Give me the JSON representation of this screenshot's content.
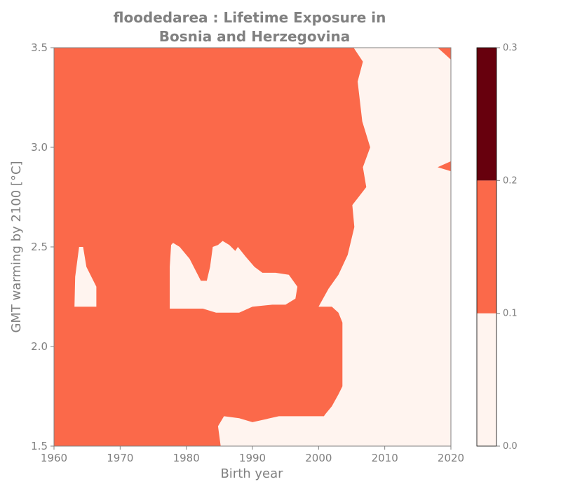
{
  "chart_data": {
    "type": "heatmap",
    "title_line1": "floodedarea : Lifetime Exposure in",
    "title_line2": "Bosnia and Herzegovina",
    "xlabel": "Birth year",
    "ylabel": "GMT warming by 2100 [°C]",
    "xlim": [
      1960,
      2020
    ],
    "ylim": [
      1.5,
      3.5
    ],
    "x_ticks": [
      1960,
      1970,
      1980,
      1990,
      2000,
      2010,
      2020
    ],
    "y_ticks": [
      "1.5",
      "2.0",
      "2.5",
      "3.0",
      "3.5"
    ],
    "levels": [
      0.0,
      0.1,
      0.2,
      0.3
    ],
    "level_colors": [
      "#fff4ef",
      "#fb694a",
      "#67000d"
    ],
    "colorbar_ticks": [
      "0.0",
      "0.1",
      "0.2",
      "0.3"
    ],
    "regions": [
      {
        "name": "main",
        "level_range": [
          0.1,
          0.2
        ],
        "polygon": [
          [
            1960,
            1.5
          ],
          [
            1960,
            3.5
          ],
          [
            2005.3,
            3.5
          ],
          [
            2006.7,
            3.43
          ],
          [
            2005.9,
            3.33
          ],
          [
            2006.6,
            3.13
          ],
          [
            2007.8,
            3.0
          ],
          [
            2006.7,
            2.9
          ],
          [
            2007.2,
            2.8
          ],
          [
            2005.1,
            2.71
          ],
          [
            2005.4,
            2.6
          ],
          [
            2004.4,
            2.46
          ],
          [
            2003.0,
            2.36
          ],
          [
            2001.5,
            2.29
          ],
          [
            2000.0,
            2.2
          ],
          [
            2002.0,
            2.2
          ],
          [
            2003.0,
            2.17
          ],
          [
            2003.6,
            2.12
          ],
          [
            2003.6,
            1.8
          ],
          [
            2003.0,
            1.76
          ],
          [
            2002.0,
            1.7
          ],
          [
            2001.0,
            1.66
          ],
          [
            2000.8,
            1.65
          ],
          [
            1994.0,
            1.65
          ],
          [
            1990.0,
            1.62
          ],
          [
            1988.0,
            1.64
          ],
          [
            1985.7,
            1.65
          ],
          [
            1984.8,
            1.6
          ],
          [
            1985.2,
            1.5
          ]
        ]
      }
    ],
    "holes": [
      {
        "name": "left",
        "level_range": [
          0.0,
          0.1
        ],
        "polygon": [
          [
            1963.1,
            2.2
          ],
          [
            1966.4,
            2.2
          ],
          [
            1966.4,
            2.3
          ],
          [
            1964.9,
            2.4
          ],
          [
            1964.4,
            2.5
          ],
          [
            1963.8,
            2.5
          ],
          [
            1963.2,
            2.35
          ]
        ]
      },
      {
        "name": "middle",
        "level_range": [
          0.0,
          0.1
        ],
        "polygon": [
          [
            1977.5,
            2.19
          ],
          [
            1982.5,
            2.19
          ],
          [
            1984.5,
            2.17
          ],
          [
            1988.0,
            2.17
          ],
          [
            1990.0,
            2.2
          ],
          [
            1993.0,
            2.21
          ],
          [
            1995.0,
            2.21
          ],
          [
            1996.5,
            2.24
          ],
          [
            1996.8,
            2.3
          ],
          [
            1995.5,
            2.36
          ],
          [
            1993.5,
            2.37
          ],
          [
            1991.5,
            2.37
          ],
          [
            1990.3,
            2.4
          ],
          [
            1989.0,
            2.45
          ],
          [
            1987.8,
            2.5
          ],
          [
            1987.4,
            2.48
          ],
          [
            1986.5,
            2.51
          ],
          [
            1985.5,
            2.53
          ],
          [
            1984.8,
            2.51
          ],
          [
            1984.0,
            2.5
          ],
          [
            1983.6,
            2.4
          ],
          [
            1983.1,
            2.33
          ],
          [
            1982.2,
            2.33
          ],
          [
            1980.5,
            2.44
          ],
          [
            1979.0,
            2.5
          ],
          [
            1978.0,
            2.52
          ],
          [
            1977.7,
            2.51
          ],
          [
            1977.5,
            2.4
          ]
        ]
      }
    ],
    "right_patches": [
      {
        "name": "top-right",
        "level_range": [
          0.1,
          0.2
        ],
        "polygon": [
          [
            2018.0,
            3.5
          ],
          [
            2020.0,
            3.5
          ],
          [
            2020.0,
            3.44
          ],
          [
            2019.0,
            3.47
          ]
        ]
      },
      {
        "name": "mid-right",
        "level_range": [
          0.1,
          0.2
        ],
        "polygon": [
          [
            2018.0,
            2.9
          ],
          [
            2020.0,
            2.93
          ],
          [
            2020.0,
            2.88
          ]
        ]
      }
    ]
  }
}
